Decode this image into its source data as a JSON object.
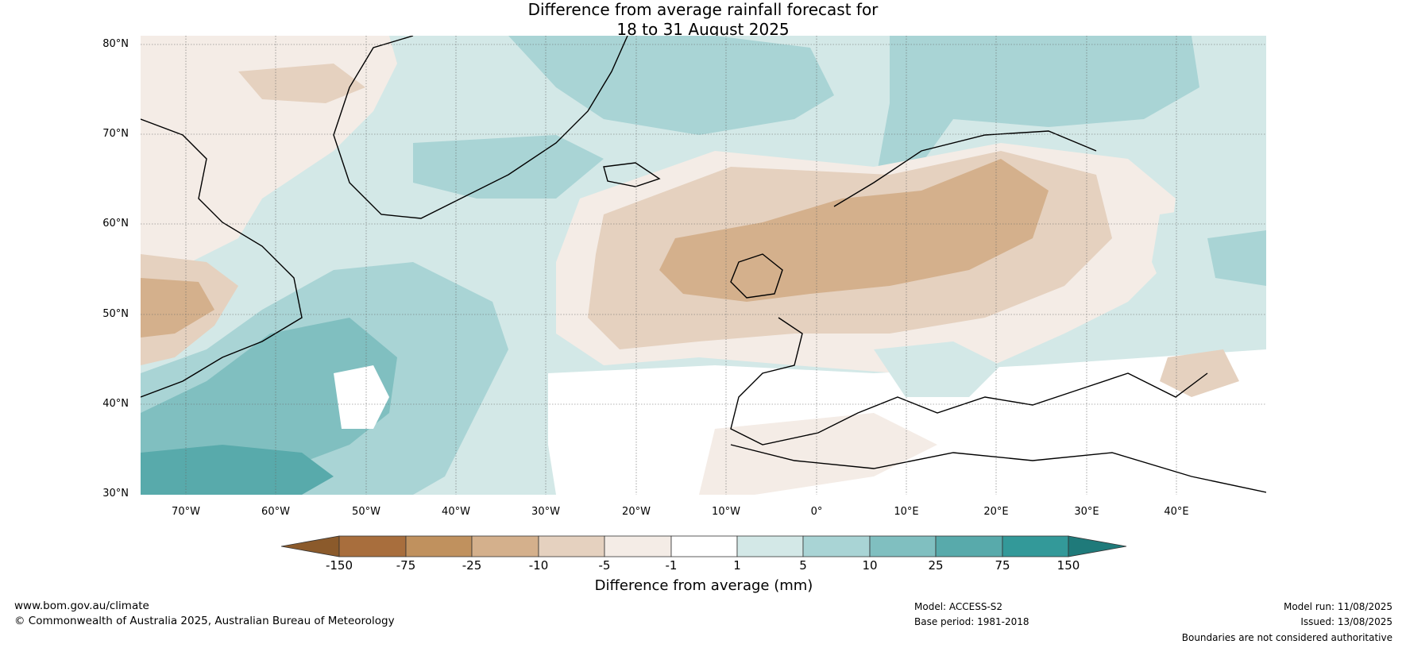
{
  "title": {
    "line1": "Difference from average rainfall forecast for",
    "line2": "18 to 31 August 2025"
  },
  "map": {
    "lon_range": [
      -75,
      50
    ],
    "lat_range": [
      30,
      81
    ],
    "lat_ticks": [
      "80°N",
      "70°N",
      "60°N",
      "50°N",
      "40°N",
      "30°N"
    ],
    "lon_ticks": [
      "70°W",
      "60°W",
      "50°W",
      "40°W",
      "30°W",
      "20°W",
      "10°W",
      "0°",
      "10°E",
      "20°E",
      "30°E",
      "40°E"
    ],
    "gridlines": true
  },
  "legend": {
    "title": "Difference from average (mm)",
    "labels": [
      "-150",
      "-75",
      "-25",
      "-10",
      "-5",
      "-1",
      "1",
      "5",
      "10",
      "25",
      "75",
      "150"
    ],
    "colors": [
      "#8b5a2b",
      "#a86e3d",
      "#c0915e",
      "#d4b08c",
      "#e5d1bf",
      "#f4ece6",
      "#ffffff",
      "#d3e8e7",
      "#a9d4d5",
      "#80bfc0",
      "#58aaab",
      "#339999",
      "#1f7a7a"
    ]
  },
  "footer": {
    "website": "www.bom.gov.au/climate",
    "copyright": "© Commonwealth of Australia 2025, Australian Bureau of Meteorology",
    "model": "Model: ACCESS-S2",
    "base_period": "Base period: 1981-2018",
    "model_run": "Model run: 11/08/2025",
    "issued": "Issued: 13/08/2025",
    "disclaimer": "Boundaries are not considered authoritative"
  }
}
